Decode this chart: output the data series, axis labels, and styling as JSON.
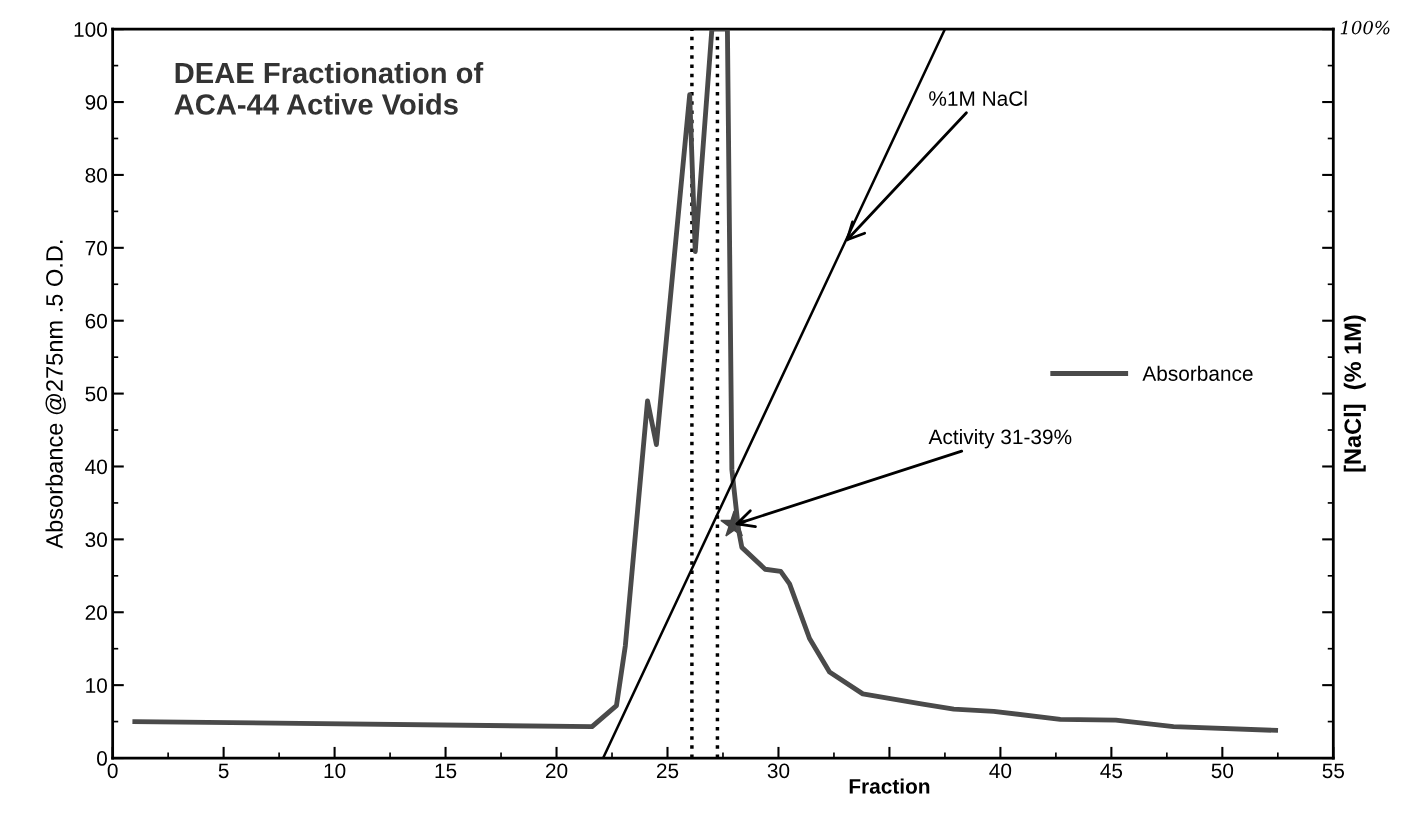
{
  "chart_data": {
    "type": "line",
    "title": "DEAE Fractionation of\nACA-44 Active Voids",
    "xlabel": "Fraction",
    "ylabel": "Absorbance @275nm .5 O.D.",
    "y2label": "[NaCl]  (% 1M)",
    "xlim": [
      0,
      55
    ],
    "xticks": [
      0,
      5,
      10,
      15,
      20,
      25,
      30,
      {
        "value": 35,
        "label": null
      },
      40,
      45,
      50,
      55
    ],
    "ylim": [
      0,
      100
    ],
    "yticks": [
      0,
      10,
      20,
      30,
      40,
      50,
      60,
      70,
      80,
      90,
      100
    ],
    "series": [
      {
        "name": "Absorbance",
        "color": "#4a4a4a",
        "x": [
          1,
          21.6,
          22.7,
          23.1,
          24.1,
          24.5,
          26.0,
          26.25,
          27.0,
          27.7,
          27.9,
          28.2,
          28.35,
          29.4,
          30.1,
          30.5,
          31.4,
          32.3,
          33.8,
          36.5,
          37.9,
          39.7,
          42.7,
          45.2,
          47.8,
          52.4
        ],
        "values": [
          5.0,
          4.3,
          7.2,
          15.4,
          49.0,
          43.0,
          91.0,
          69.5,
          100,
          100,
          39.6,
          31.3,
          28.9,
          25.9,
          25.6,
          23.9,
          16.4,
          11.8,
          8.8,
          7.4,
          6.7,
          6.4,
          5.3,
          5.2,
          4.3,
          3.8
        ]
      },
      {
        "color": "#000000",
        "x": [
          22.1,
          37.5
        ],
        "values": [
          0,
          100
        ]
      }
    ],
    "ref_lines": [
      {
        "axis": "x",
        "value": 26.1,
        "color": "#000000",
        "line_style": "dotted"
      },
      {
        "axis": "x",
        "value": 27.25,
        "color": "#000000",
        "line_style": "dotted"
      }
    ],
    "annotations": [
      {
        "text": "%1M NaCl",
        "x": 33.0,
        "y": 70.8
      },
      {
        "text": "Activity 31-39%",
        "x": 28.0,
        "y": 32.0
      },
      "100%"
    ],
    "legend": "right",
    "grid": false,
    "marker": "none",
    "line_style": "solid"
  }
}
